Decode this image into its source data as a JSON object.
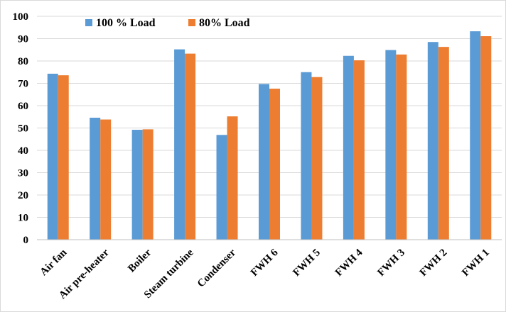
{
  "chart_data": {
    "type": "bar",
    "title": "",
    "xlabel": "",
    "ylabel": "",
    "ylim": [
      0,
      100
    ],
    "yticks": [
      0,
      10,
      20,
      30,
      40,
      50,
      60,
      70,
      80,
      90,
      100
    ],
    "grid": true,
    "legend_position": "top-left",
    "categories": [
      "Air fan",
      "Air pre-heater",
      "Boiler",
      "Steam turbine",
      "Condenser",
      "FWH 6",
      "FWH 5",
      "FWH 4",
      "FWH 3",
      "FWH 2",
      "FWH 1"
    ],
    "series": [
      {
        "name": "100 % Load",
        "color": "#5b9bd5",
        "values": [
          74.3,
          54.6,
          49.2,
          85.2,
          46.9,
          69.7,
          75.0,
          82.3,
          84.9,
          88.5,
          93.3
        ]
      },
      {
        "name": "80% Load",
        "color": "#ed7d31",
        "values": [
          73.6,
          53.8,
          49.4,
          83.3,
          55.2,
          67.6,
          72.8,
          80.3,
          82.9,
          86.3,
          91.1
        ]
      }
    ]
  }
}
